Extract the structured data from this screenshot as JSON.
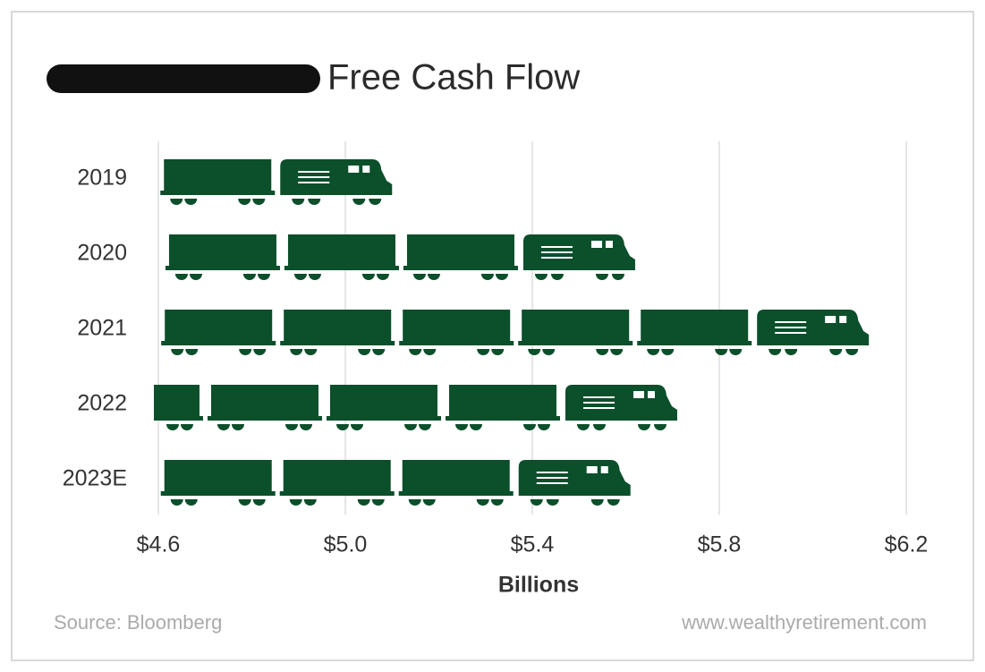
{
  "chart_data": {
    "type": "pictogram-bar",
    "title": "Free Cash Flow",
    "categories": [
      "2019",
      "2020",
      "2021",
      "2022",
      "2023E"
    ],
    "values": [
      5.1,
      5.62,
      6.12,
      5.71,
      5.61
    ],
    "color": "#0b4f2b",
    "xlim": [
      4.6,
      6.2
    ],
    "xticks": [
      {
        "value": 4.6,
        "label": "$4.6"
      },
      {
        "value": 5.0,
        "label": "$5.0"
      },
      {
        "value": 5.4,
        "label": "$5.4"
      },
      {
        "value": 5.8,
        "label": "$5.8"
      },
      {
        "value": 6.2,
        "label": "$6.2"
      }
    ],
    "grid": true,
    "x_label": "Billions",
    "source": "Source: Bloomberg",
    "website": "www.wealthyretirement.com"
  }
}
